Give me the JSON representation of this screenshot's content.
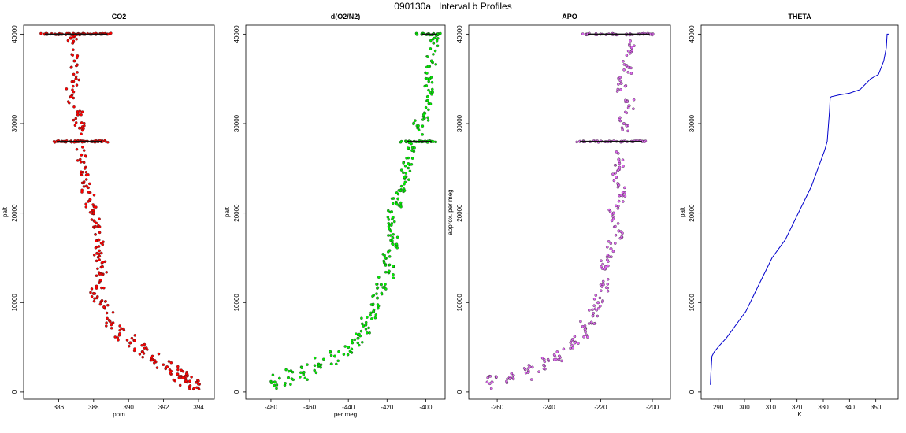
{
  "suptitle": "090130a   Interval b Profiles",
  "chart_data": [
    {
      "type": "scatter",
      "title": "CO2",
      "xlabel": "ppm",
      "ylabel": "palt",
      "xlim": [
        384.0,
        394.9
      ],
      "ylim": [
        -800,
        41000
      ],
      "xticks": [
        386,
        388,
        390,
        392,
        394
      ],
      "yticks": [
        0,
        10000,
        20000,
        30000,
        40000
      ],
      "color": "#ff0000",
      "series": [
        {
          "x": [
            385.2,
            385.8,
            386.2,
            386.6,
            386.9,
            387.1,
            387.4,
            387.8,
            388.4,
            388.8
          ],
          "y": [
            40000,
            40000,
            40000,
            40000,
            40000,
            40000,
            40000,
            40000,
            40000,
            40000
          ]
        },
        {
          "x": [
            385.9,
            386.3,
            386.7,
            387.0,
            387.2,
            387.5,
            387.9,
            388.2,
            388.5
          ],
          "y": [
            28000,
            28000,
            28000,
            28000,
            28000,
            28000,
            28000,
            28000,
            28000
          ]
        },
        {
          "x": [
            386.8,
            386.9,
            387.0,
            386.7,
            387.1,
            387.2,
            387.3,
            387.5,
            387.6,
            387.8,
            388.0,
            388.1,
            388.3,
            388.2,
            388.5,
            388.4,
            388.0,
            388.6,
            388.9,
            389.5,
            390.1,
            390.8,
            391.5,
            392.2,
            392.8,
            393.1,
            393.5,
            394.0
          ],
          "y": [
            39000,
            37000,
            35000,
            33000,
            31000,
            29500,
            26500,
            25000,
            23000,
            21500,
            20000,
            18500,
            17000,
            15500,
            14000,
            12500,
            11000,
            9500,
            8000,
            6500,
            5500,
            4500,
            3500,
            2800,
            2000,
            1600,
            1200,
            900
          ]
        }
      ]
    },
    {
      "type": "scatter",
      "title": "d(O2/N2)",
      "xlabel": "per meg",
      "ylabel": "palt",
      "xlim": [
        -493,
        -390
      ],
      "ylim": [
        -800,
        41000
      ],
      "xticks": [
        -480,
        -460,
        -440,
        -420,
        -400
      ],
      "yticks": [
        0,
        10000,
        20000,
        30000,
        40000
      ],
      "color": "#00ee00",
      "series": [
        {
          "x": [
            -402,
            -399,
            -396,
            -394
          ],
          "y": [
            40000,
            40000,
            40000,
            40000
          ]
        },
        {
          "x": [
            -410,
            -406,
            -402,
            -399,
            -397
          ],
          "y": [
            28000,
            28000,
            28000,
            28000,
            28000
          ]
        },
        {
          "x": [
            -396,
            -397,
            -398,
            -399,
            -401,
            -404,
            -407,
            -409,
            -411,
            -413,
            -415,
            -417,
            -418,
            -417,
            -421,
            -419,
            -423,
            -425,
            -427,
            -431,
            -435,
            -440,
            -447,
            -455,
            -463,
            -471,
            -478
          ],
          "y": [
            39000,
            37000,
            35000,
            33000,
            31000,
            29500,
            27000,
            25500,
            24000,
            22500,
            21000,
            19500,
            18000,
            16500,
            15000,
            13500,
            12000,
            10500,
            9000,
            7500,
            6000,
            5000,
            4000,
            3000,
            2200,
            1600,
            1100
          ]
        }
      ]
    },
    {
      "type": "scatter",
      "title": "APO",
      "xlabel": "",
      "ylabel": "approx. per meg",
      "xlim": [
        -271,
        -193
      ],
      "ylim": [
        -800,
        41000
      ],
      "xticks": [
        -260,
        -240,
        -220,
        -200
      ],
      "yticks": [
        0,
        10000,
        20000,
        30000,
        40000
      ],
      "color": "#dd66ee",
      "series": [
        {
          "x": [
            -225,
            -220,
            -215,
            -210,
            -205,
            -201
          ],
          "y": [
            40000,
            40000,
            40000,
            40000,
            40000,
            40000
          ]
        },
        {
          "x": [
            -228,
            -222,
            -216,
            -212,
            -208,
            -204
          ],
          "y": [
            28000,
            28000,
            28000,
            28000,
            28000,
            28000
          ]
        },
        {
          "x": [
            -208,
            -210,
            -212,
            -209,
            -211,
            -213,
            -214,
            -212,
            -215,
            -213,
            -216,
            -218,
            -219,
            -221,
            -223,
            -226,
            -230,
            -236,
            -242,
            -248,
            -255,
            -262
          ],
          "y": [
            38500,
            36500,
            34500,
            32000,
            30000,
            26000,
            24000,
            22000,
            20000,
            18000,
            16000,
            14000,
            12000,
            10000,
            8500,
            7000,
            5500,
            4000,
            3000,
            2200,
            1500,
            1100
          ]
        }
      ]
    },
    {
      "type": "line",
      "title": "THETA",
      "xlabel": "K",
      "ylabel": "palt",
      "xlim": [
        283.5,
        358.5
      ],
      "ylim": [
        -800,
        41000
      ],
      "xticks": [
        290,
        300,
        310,
        320,
        330,
        340,
        350
      ],
      "yticks": [
        0,
        10000,
        20000,
        30000,
        40000
      ],
      "color": "#0000cc",
      "series": [
        {
          "x": [
            287.0,
            287.2,
            287.6,
            288.5,
            290.5,
            293.0,
            295.5,
            298.0,
            300.5,
            303.0,
            305.5,
            308.0,
            310.5,
            313.0,
            315.5,
            318.0,
            320.5,
            323.0,
            325.5,
            328.0,
            330.5,
            331.5,
            332.0,
            332.4,
            332.6,
            333.0,
            336.0,
            340.0,
            344.0,
            348.0,
            351.0,
            353.0,
            354.0,
            354.3,
            355.0
          ],
          "y": [
            800,
            2000,
            4000,
            4500,
            5200,
            6000,
            7000,
            8000,
            9000,
            10500,
            12000,
            13500,
            15000,
            16000,
            17000,
            18500,
            20000,
            21500,
            23000,
            25000,
            27000,
            28000,
            30000,
            31500,
            32800,
            33000,
            33200,
            33400,
            33800,
            35000,
            35500,
            37000,
            38500,
            40000,
            40000
          ]
        }
      ]
    }
  ]
}
